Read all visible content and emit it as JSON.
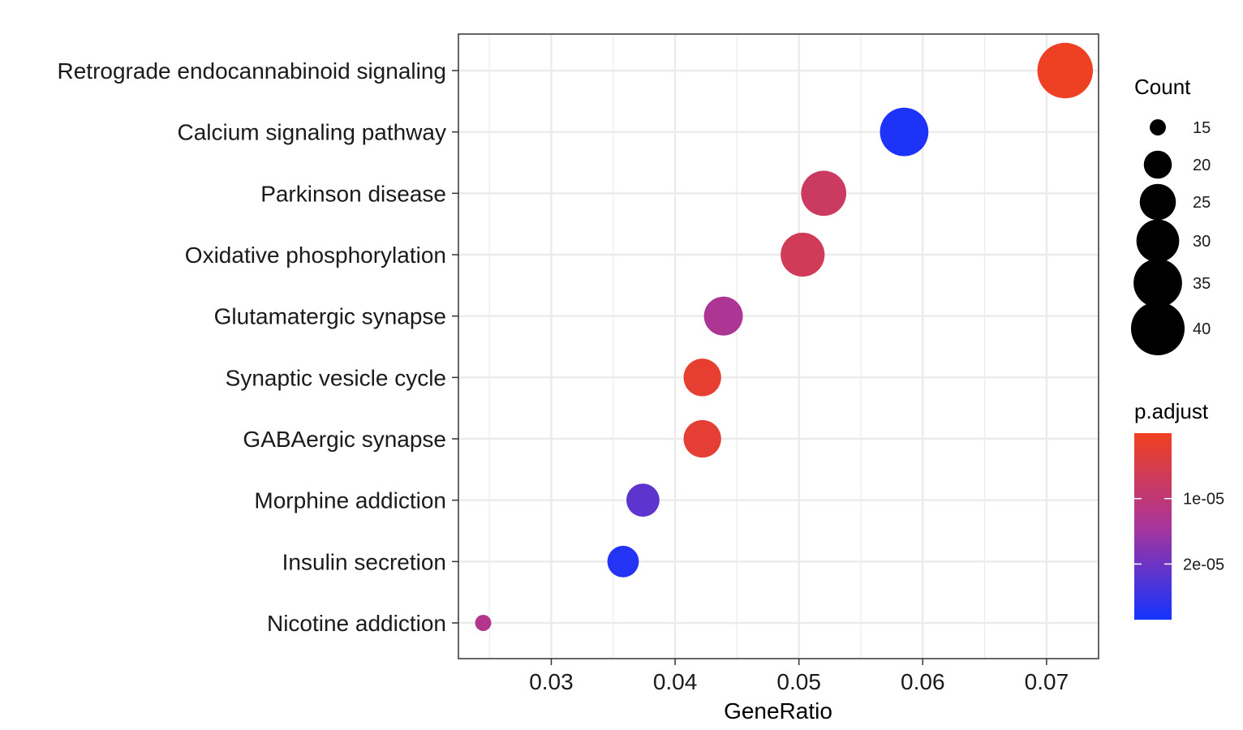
{
  "chart_data": {
    "type": "scatter",
    "title": "",
    "xlabel": "GeneRatio",
    "ylabel": "",
    "xlim": [
      0.0225,
      0.0742
    ],
    "xticks": [
      0.03,
      0.04,
      0.05,
      0.06,
      0.07
    ],
    "xtick_labels": [
      "0.03",
      "0.04",
      "0.05",
      "0.06",
      "0.07"
    ],
    "grid": true,
    "legend_position": "right",
    "colors": {
      "low": "#1433ff",
      "mid": "#a9359a",
      "high": "#f0401f",
      "grid": "#ebebeb",
      "border": "#333333"
    },
    "categories": [
      "Retrograde endocannabinoid signaling",
      "Calcium signaling pathway",
      "Parkinson disease",
      "Oxidative phosphorylation",
      "Glutamatergic synapse",
      "Synaptic vesicle cycle",
      "GABAergic synapse",
      "Morphine addiction",
      "Insulin secretion",
      "Nicotine addiction"
    ],
    "points": [
      {
        "category": "Retrograde endocannabinoid signaling",
        "gene_ratio": 0.0715,
        "count": 42,
        "p_adjust": 5e-07
      },
      {
        "category": "Calcium signaling pathway",
        "gene_ratio": 0.0585,
        "count": 35,
        "p_adjust": 2.75e-05
      },
      {
        "category": "Parkinson disease",
        "gene_ratio": 0.052,
        "count": 32,
        "p_adjust": 7.5e-06
      },
      {
        "category": "Oxidative phosphorylation",
        "gene_ratio": 0.0503,
        "count": 31,
        "p_adjust": 6.5e-06
      },
      {
        "category": "Glutamatergic synapse",
        "gene_ratio": 0.0439,
        "count": 27,
        "p_adjust": 1.35e-05
      },
      {
        "category": "Synaptic vesicle cycle",
        "gene_ratio": 0.0422,
        "count": 26,
        "p_adjust": 2e-06
      },
      {
        "category": "GABAergic synapse",
        "gene_ratio": 0.0422,
        "count": 26,
        "p_adjust": 2.5e-06
      },
      {
        "category": "Morphine addiction",
        "gene_ratio": 0.0374,
        "count": 23,
        "p_adjust": 2.15e-05
      },
      {
        "category": "Insulin secretion",
        "gene_ratio": 0.0358,
        "count": 22,
        "p_adjust": 2.7e-05
      },
      {
        "category": "Nicotine addiction",
        "gene_ratio": 0.0245,
        "count": 15,
        "p_adjust": 1.25e-05
      }
    ],
    "size_legend": {
      "title": "Count",
      "values": [
        15,
        20,
        25,
        30,
        35,
        40
      ],
      "labels": [
        "15",
        "20",
        "25",
        "30",
        "35",
        "40"
      ]
    },
    "color_legend": {
      "title": "p.adjust",
      "range": [
        0,
        2.85e-05
      ],
      "ticks": [
        1e-05,
        2e-05
      ],
      "tick_labels": [
        "1e-05",
        "2e-05"
      ]
    }
  }
}
